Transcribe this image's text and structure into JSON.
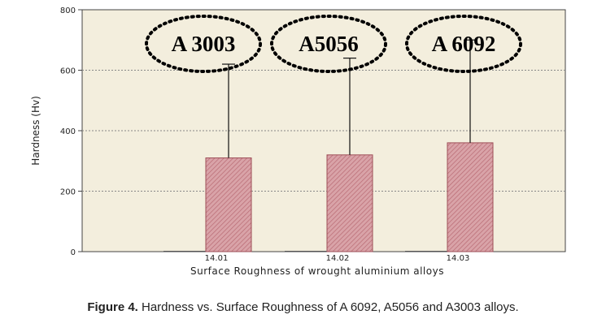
{
  "chart_data": {
    "type": "bar",
    "categories": [
      "14.01",
      "14.02",
      "14.03"
    ],
    "values": [
      310,
      320,
      360
    ],
    "error_upper": [
      620,
      640,
      700
    ],
    "annotations": [
      "A 3003",
      "A5056",
      "A 6092"
    ],
    "xlabel": "Surface Roughness of wrought aluminium alloys",
    "ylabel": "Hardness (Hv)",
    "ylim": [
      0,
      800
    ],
    "yticks": [
      0,
      200,
      400,
      600,
      800
    ],
    "grid": true,
    "bar_color": "#c9828a",
    "plot_background": "#f2eddc"
  },
  "caption": {
    "label": "Figure 4.",
    "text": " Hardness vs. Surface Roughness of A 6092, A5056 and A3003 alloys."
  }
}
